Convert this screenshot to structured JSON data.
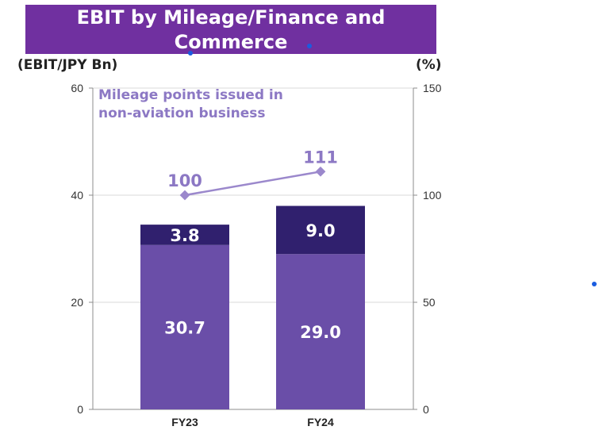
{
  "title": "EBIT by Mileage/Finance and Commerce",
  "left_axis_unit": "(EBIT/JPY Bn)",
  "right_axis_unit": "(%)",
  "colors": {
    "banner": "#7030a0",
    "bar_lower": "#6a4ea8",
    "bar_upper": "#30206e",
    "line": "#9b88cc",
    "annotation": "#8c78c4",
    "grid": "#d9d9d9",
    "axis": "#8c8c8c"
  },
  "chart_data": {
    "type": "bar",
    "stacked": true,
    "categories": [
      "FY23",
      "FY24"
    ],
    "series": [
      {
        "values": [
          30.7,
          29.0
        ],
        "labels": [
          "30.7",
          "29.0"
        ]
      },
      {
        "values": [
          3.8,
          9.0
        ],
        "labels": [
          "3.8",
          "9.0"
        ]
      }
    ],
    "line_series": {
      "name": "Mileage points issued in non-aviation business",
      "axis": "right",
      "values": [
        100,
        111
      ],
      "labels": [
        "100",
        "111"
      ]
    },
    "ylim": [
      0,
      60
    ],
    "yticks": [
      "0",
      "20",
      "40",
      "60"
    ],
    "y2lim": [
      0,
      150
    ],
    "y2ticks": [
      "0",
      "50",
      "100",
      "150"
    ],
    "grid": true,
    "legend": "none"
  }
}
